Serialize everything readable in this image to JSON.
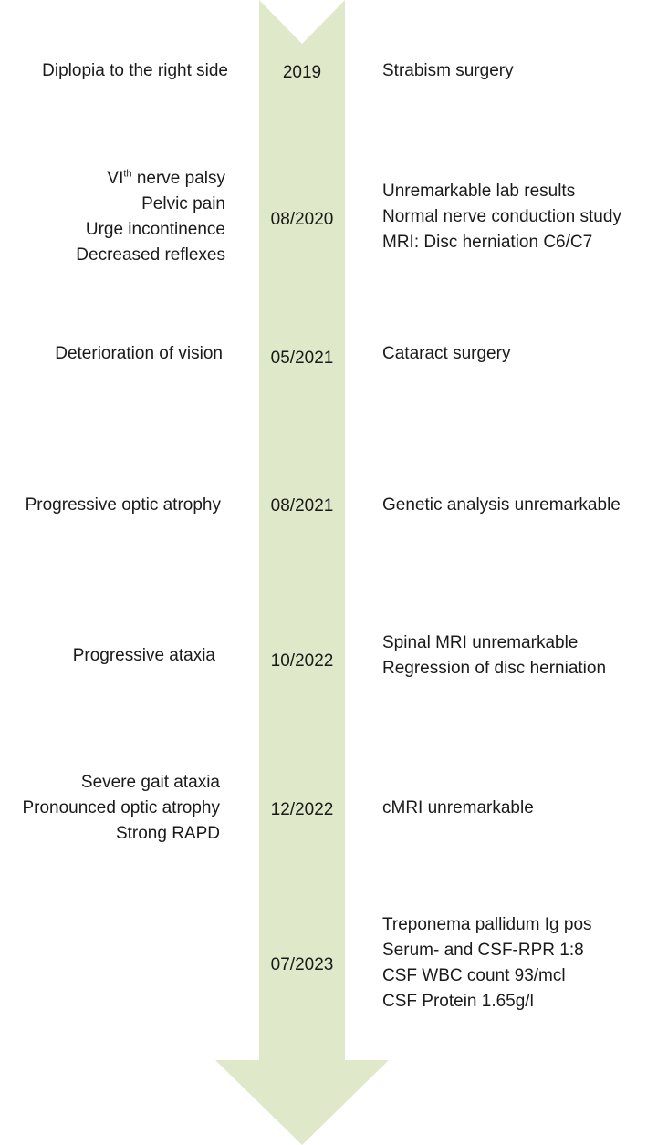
{
  "colors": {
    "arrow": "#dfe8c9",
    "text": "#1a1a1a",
    "spellcheck": "#e03030"
  },
  "timeline": [
    {
      "date": "2019",
      "left": [
        {
          "text": "Diplopia to the right side"
        }
      ],
      "right": [
        "Strabism surgery"
      ]
    },
    {
      "date": "08/2020",
      "left": [
        {
          "text": "VI",
          "sup": "th",
          "rest": " nerve palsy"
        },
        {
          "text": "Pelvic pain"
        },
        {
          "text": "Urge incontinence"
        },
        {
          "text": "Decreased reflexes"
        }
      ],
      "right": [
        "Unremarkable lab results",
        "Normal nerve conduction study",
        "MRI: Disc herniation C6/C7"
      ]
    },
    {
      "date": "05/2021",
      "left": [
        {
          "text": "Deterioration of vision"
        }
      ],
      "right": [
        "Cataract surgery"
      ]
    },
    {
      "date": "08/2021",
      "left": [
        {
          "text": "Progressive optic atrophy"
        }
      ],
      "right": [
        "Genetic analysis unremarkable"
      ]
    },
    {
      "date": "10/2022",
      "left": [
        {
          "text": "Progressive ataxia"
        }
      ],
      "right": [
        "Spinal MRI unremarkable",
        "Regression of disc herniation"
      ]
    },
    {
      "date": "12/2022",
      "left": [
        {
          "text": "Severe gait ataxia"
        },
        {
          "text": "Pronounced optic atrophy"
        },
        {
          "text": "Strong RAPD"
        }
      ],
      "right": [
        "cMRI unremarkable"
      ]
    },
    {
      "date": "07/2023",
      "left": [],
      "right": [
        "Treponema pallidum Ig pos",
        "Serum- and CSF-RPR 1:8",
        "CSF WBC count 93/mcl",
        "CSF Protein 1.65g/l"
      ]
    }
  ]
}
